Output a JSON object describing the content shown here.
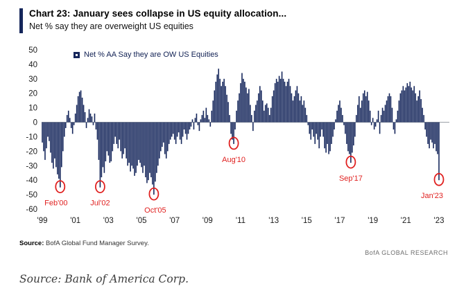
{
  "header": {
    "title": "Chart 23: January sees collapse in US equity allocation...",
    "subtitle": "Net % say they are overweight US equities",
    "accent_color": "#15265b"
  },
  "legend": {
    "label": "Net % AA Say they are OW US Equities",
    "marker_color": "#15265b"
  },
  "source_row": {
    "source_label": "Source:",
    "source_text": " BofA Global Fund Manager Survey.",
    "brand": "BofA GLOBAL RESEARCH"
  },
  "footer": {
    "caption": "Source: Bank of America Corp."
  },
  "chart_data": {
    "type": "bar",
    "title": "Net % AA Say they are OW US Equities",
    "ylabel": "Net % say they are overweight US equities",
    "ylim": [
      -60,
      50
    ],
    "y_ticks": [
      50,
      40,
      30,
      20,
      10,
      0,
      -10,
      -20,
      -30,
      -40,
      -50,
      -60
    ],
    "x_tick_labels": [
      "'99",
      "'01",
      "'03",
      "'05",
      "'07",
      "'09",
      "'11",
      "'13",
      "'15",
      "'17",
      "'19",
      "'21",
      "'23"
    ],
    "x_tick_every": 24,
    "grid": false,
    "legend_position": "top-left-inside",
    "bar_color": "#15265b",
    "zero_line_color": "#9aa0a6",
    "annotation_color": "#e0201f",
    "series": [
      {
        "name": "Net % AA Say they are OW US Equities",
        "start": "1999-01",
        "freq": "monthly",
        "values": [
          -14,
          -20,
          -26,
          -18,
          -10,
          -13,
          -21,
          -28,
          -32,
          -25,
          -31,
          -36,
          -39,
          -45,
          -31,
          -20,
          -10,
          -4,
          5,
          8,
          3,
          -4,
          -8,
          -2,
          6,
          12,
          18,
          21,
          22,
          17,
          12,
          7,
          -4,
          3,
          9,
          6,
          4,
          -2,
          6,
          -5,
          -12,
          -26,
          -45,
          -38,
          -31,
          -35,
          -27,
          -20,
          -23,
          -28,
          -27,
          -20,
          -15,
          -10,
          -15,
          -18,
          -12,
          -20,
          -25,
          -22,
          -18,
          -25,
          -30,
          -28,
          -34,
          -30,
          -32,
          -37,
          -35,
          -30,
          -26,
          -28,
          -31,
          -35,
          -30,
          -38,
          -42,
          -40,
          -35,
          -38,
          -43,
          -50,
          -41,
          -35,
          -30,
          -25,
          -20,
          -17,
          -14,
          -22,
          -25,
          -20,
          -15,
          -12,
          -10,
          -8,
          -12,
          -15,
          -10,
          -7,
          -12,
          -15,
          -10,
          -5,
          -8,
          -12,
          -8,
          -5,
          -3,
          2,
          -5,
          3,
          6,
          -2,
          -6,
          2,
          5,
          8,
          3,
          10,
          5,
          2,
          -3,
          8,
          15,
          22,
          28,
          33,
          37,
          30,
          25,
          28,
          30,
          25,
          19,
          14,
          5,
          -8,
          -12,
          -15,
          -5,
          8,
          15,
          20,
          27,
          34,
          30,
          28,
          24,
          20,
          23,
          12,
          5,
          -6,
          8,
          12,
          15,
          20,
          25,
          22,
          15,
          8,
          12,
          13,
          10,
          5,
          10,
          18,
          22,
          27,
          30,
          28,
          32,
          30,
          35,
          30,
          28,
          25,
          28,
          30,
          25,
          20,
          15,
          18,
          22,
          25,
          20,
          15,
          18,
          12,
          15,
          10,
          5,
          -2,
          -8,
          -12,
          -5,
          -10,
          -15,
          -8,
          -12,
          -18,
          -10,
          -5,
          -10,
          -18,
          -21,
          -15,
          -22,
          -20,
          -15,
          -10,
          -5,
          2,
          8,
          12,
          15,
          10,
          5,
          -2,
          -8,
          -15,
          -20,
          -22,
          -28,
          -21,
          -16,
          -10,
          5,
          12,
          18,
          10,
          15,
          20,
          22,
          18,
          21,
          15,
          8,
          -2,
          3,
          -5,
          -3,
          2,
          8,
          -8,
          5,
          10,
          8,
          12,
          15,
          18,
          20,
          18,
          10,
          -5,
          -8,
          2,
          8,
          15,
          20,
          22,
          25,
          22,
          24,
          27,
          25,
          28,
          24,
          22,
          25,
          20,
          15,
          18,
          22,
          16,
          10,
          5,
          -5,
          -10,
          -15,
          -18,
          -12,
          -14,
          -18,
          -15,
          -20,
          -22,
          -40
        ]
      }
    ],
    "annotations": [
      {
        "label": "Feb'00",
        "month": "2000-02",
        "value": -45,
        "dx": -6
      },
      {
        "label": "Jul'02",
        "month": "2002-07",
        "value": -45,
        "dx": 0
      },
      {
        "label": "Oct'05",
        "month": "2005-10",
        "value": -50,
        "dx": 2
      },
      {
        "label": "Aug'10",
        "month": "2010-08",
        "value": -15,
        "dx": 0
      },
      {
        "label": "Sep'17",
        "month": "2017-09",
        "value": -28,
        "dx": 0
      },
      {
        "label": "Jan'23",
        "month": "2023-01",
        "value": -40,
        "dx": -10
      }
    ]
  }
}
